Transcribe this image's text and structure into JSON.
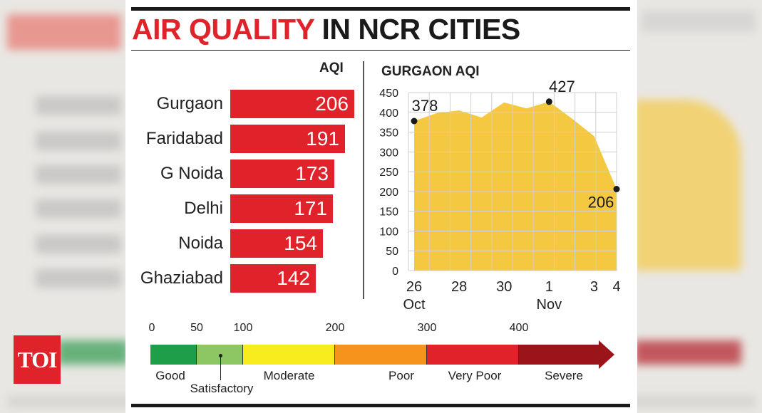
{
  "brand": {
    "logo_text": "TOI"
  },
  "headline": {
    "part1": "AIR QUALITY",
    "part2": "IN NCR CITIES"
  },
  "colors": {
    "accent_red": "#e0232a",
    "area_fill": "#f5c842",
    "good": "#1f9e4a",
    "satisfactory": "#8cc763",
    "moderate": "#f6ec1e",
    "poor": "#f4941d",
    "very_poor": "#e0232a",
    "severe": "#9b1419"
  },
  "chart_data": [
    {
      "type": "bar",
      "orientation": "horizontal",
      "title": "AQI",
      "categories": [
        "Gurgaon",
        "Faridabad",
        "G Noida",
        "Delhi",
        "Noida",
        "Ghaziabad"
      ],
      "values": [
        206,
        191,
        173,
        171,
        154,
        142
      ],
      "bar_color": "#e0232a"
    },
    {
      "type": "area",
      "title": "GURGAON AQI",
      "x": [
        "Oct 26",
        "Oct 27",
        "Oct 28",
        "Oct 29",
        "Oct 30",
        "Oct 31",
        "Nov 1",
        "Nov 2",
        "Nov 3",
        "Nov 4"
      ],
      "values": [
        378,
        398,
        405,
        387,
        425,
        410,
        427,
        385,
        340,
        206
      ],
      "x_tick_labels": [
        {
          "top": "26",
          "bottom": "Oct",
          "index": 0
        },
        {
          "top": "28",
          "bottom": "",
          "index": 2
        },
        {
          "top": "30",
          "bottom": "",
          "index": 4
        },
        {
          "top": "1",
          "bottom": "Nov",
          "index": 6
        },
        {
          "top": "3",
          "bottom": "",
          "index": 8
        },
        {
          "top": "4",
          "bottom": "",
          "index": 9
        }
      ],
      "y_ticks": [
        0,
        50,
        100,
        150,
        200,
        250,
        300,
        350,
        400,
        450
      ],
      "ylim": [
        0,
        450
      ],
      "grid": true,
      "annotations": [
        {
          "label": "378",
          "index": 0
        },
        {
          "label": "427",
          "index": 6
        },
        {
          "label": "206",
          "index": 9
        }
      ]
    }
  ],
  "aqi_scale": {
    "ticks": [
      "0",
      "50",
      "100",
      "200",
      "300",
      "400"
    ],
    "bands": [
      {
        "name": "Good",
        "from": 0,
        "to": 50,
        "color": "#1f9e4a"
      },
      {
        "name": "Satisfactory",
        "from": 50,
        "to": 100,
        "color": "#8cc763"
      },
      {
        "name": "Moderate",
        "from": 100,
        "to": 200,
        "color": "#f6ec1e"
      },
      {
        "name": "Poor",
        "from": 200,
        "to": 300,
        "color": "#f4941d"
      },
      {
        "name": "Very Poor",
        "from": 300,
        "to": 400,
        "color": "#e0232a"
      },
      {
        "name": "Severe",
        "from": 400,
        "to": 500,
        "color": "#9b1419"
      }
    ]
  }
}
